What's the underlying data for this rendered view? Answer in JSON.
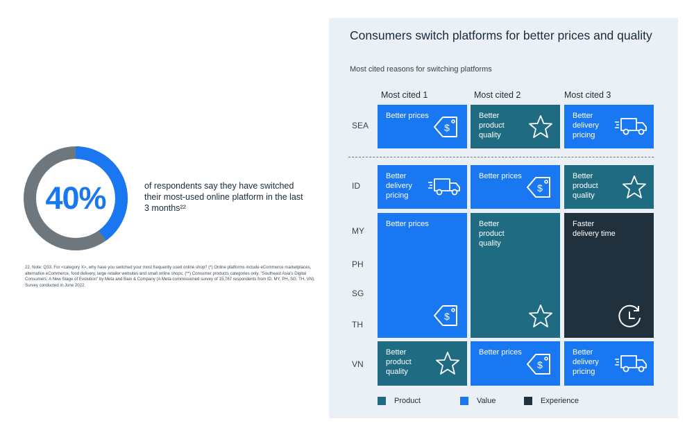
{
  "stat": {
    "percent": "40%",
    "percent_value": 40,
    "text": "of respondents say they have switched their most-used online platform in the last 3 months²²"
  },
  "footnote": "22. Note: Q33. For <category X>, why have you switched your most frequently used online shop? (*) Online platforms include eCommerce marketplaces, alternative eCommerce, food delivery, large retailer websites and small online shops; (**) Consumer products categories only. \"Southeast Asia's Digital Consumers: A New Stage of Evolution\" by Meta and Bain & Company (A Meta-commissioned survey of 15,767 respondents from ID, MY, PH, SG, TH, VN). Survey conducted in June 2022.",
  "colors": {
    "value": "#1a77f2",
    "product": "#1e6b82",
    "experience": "#20303c",
    "donut_track": "#6e767e",
    "donut_fill": "#1a77f2",
    "panel_bg": "#eaf0f6"
  },
  "chart_data": {
    "type": "table",
    "title": "Consumers switch platforms for better prices and quality",
    "subtitle": "Most cited reasons for switching platforms",
    "columns": [
      "Most cited 1",
      "Most cited 2",
      "Most cited 3"
    ],
    "rows": [
      "SEA",
      "ID",
      "MY",
      "PH",
      "SG",
      "TH",
      "VN"
    ],
    "legend": [
      {
        "label": "Product",
        "category": "product"
      },
      {
        "label": "Value",
        "category": "value"
      },
      {
        "label": "Experience",
        "category": "experience"
      }
    ],
    "cells": {
      "sea_1": {
        "label": "Better prices",
        "category": "value",
        "icon": "price-tag-icon"
      },
      "sea_2": {
        "label": "Better product quality",
        "category": "product",
        "icon": "star-icon"
      },
      "sea_3": {
        "label": "Better delivery pricing",
        "category": "value",
        "icon": "delivery-truck-icon"
      },
      "id_1": {
        "label": "Better delivery pricing",
        "category": "value",
        "icon": "delivery-truck-icon"
      },
      "id_2": {
        "label": "Better prices",
        "category": "value",
        "icon": "price-tag-icon"
      },
      "id_3": {
        "label": "Better product quality",
        "category": "product",
        "icon": "star-icon"
      },
      "mid_1": {
        "label": "Better prices",
        "category": "value",
        "icon": "price-tag-icon",
        "applies_to": [
          "MY",
          "PH",
          "SG",
          "TH"
        ]
      },
      "mid_2": {
        "label": "Better product quality",
        "category": "product",
        "icon": "star-icon",
        "applies_to": [
          "MY",
          "PH",
          "SG",
          "TH"
        ]
      },
      "mid_3": {
        "label": "Faster delivery time",
        "category": "experience",
        "icon": "clock-icon",
        "applies_to": [
          "MY",
          "PH",
          "SG",
          "TH"
        ]
      },
      "vn_1": {
        "label": "Better product quality",
        "category": "product",
        "icon": "star-icon"
      },
      "vn_2": {
        "label": "Better prices",
        "category": "value",
        "icon": "price-tag-icon"
      },
      "vn_3": {
        "label": "Better delivery pricing",
        "category": "value",
        "icon": "delivery-truck-icon"
      }
    }
  }
}
